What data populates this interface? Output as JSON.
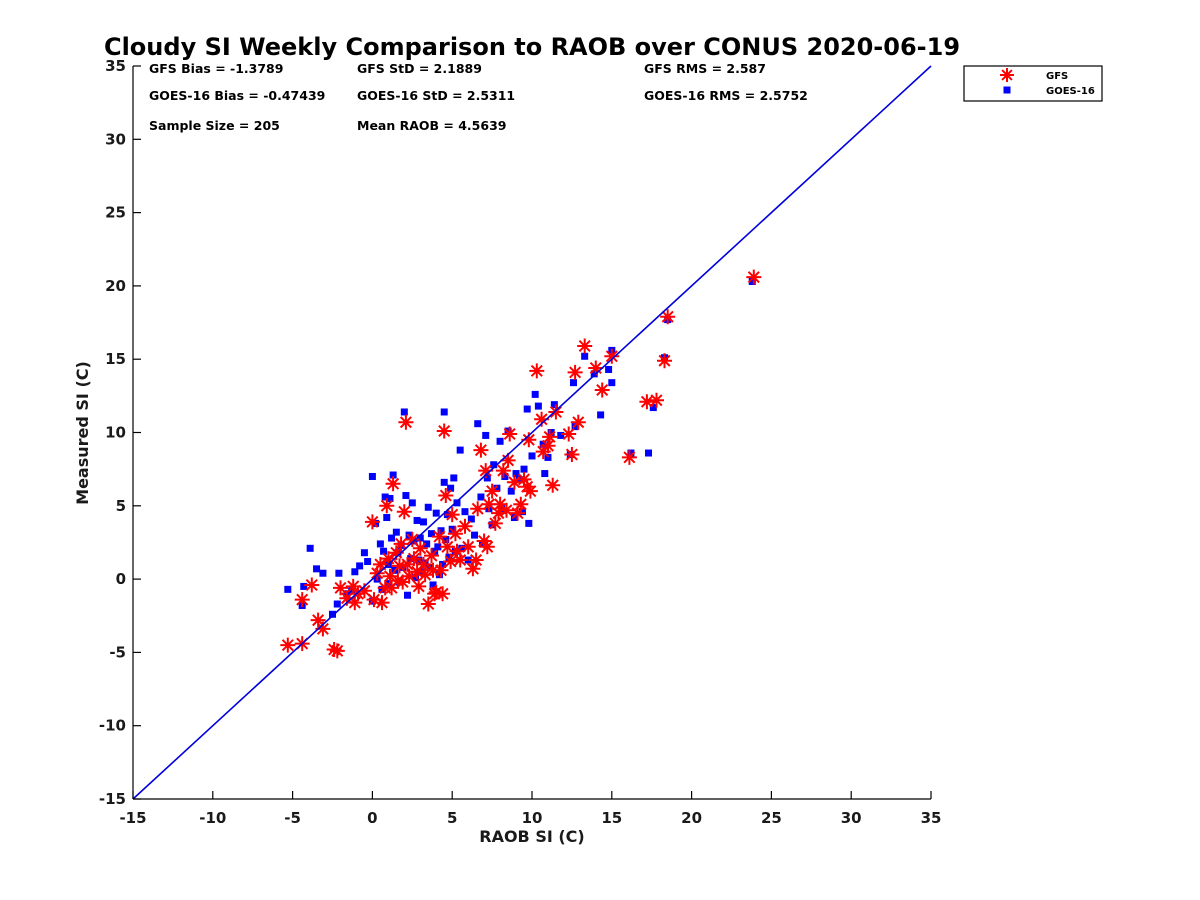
{
  "chart_data": {
    "type": "scatter",
    "title": "Cloudy SI Weekly Comparison to RAOB over CONUS 2020-06-19",
    "xlabel": "RAOB SI (C)",
    "ylabel": "Measured SI (C)",
    "xlim": [
      -15,
      35
    ],
    "ylim": [
      -15,
      35
    ],
    "xticks": [
      -15,
      -10,
      -5,
      0,
      5,
      10,
      15,
      20,
      25,
      30,
      35
    ],
    "yticks": [
      -15,
      -10,
      -5,
      0,
      5,
      10,
      15,
      20,
      25,
      30,
      35
    ],
    "grid": false,
    "legend_position": "top-right, outside plot",
    "reference_line": {
      "x": [
        -15,
        35
      ],
      "y": [
        -15,
        35
      ],
      "color": "#0000dd"
    },
    "stats": [
      [
        "GFS Bias = -1.3789",
        "GFS StD = 2.1889",
        "GFS RMS = 2.587"
      ],
      [
        "GOES-16 Bias = -0.47439",
        "GOES-16 StD = 2.5311",
        "GOES-16 RMS = 2.5752"
      ],
      [
        "Sample Size = 205",
        "Mean RAOB = 4.5639",
        ""
      ]
    ],
    "series": [
      {
        "name": "GFS",
        "marker": "asterisk",
        "color": "#ff0000",
        "points": [
          [
            -5.3,
            -4.5
          ],
          [
            -4.4,
            -4.4
          ],
          [
            -4.4,
            -1.4
          ],
          [
            -3.8,
            -0.4
          ],
          [
            -3.4,
            -2.8
          ],
          [
            -3.1,
            -3.4
          ],
          [
            -2.4,
            -4.8
          ],
          [
            -2.2,
            -4.9
          ],
          [
            -2.0,
            -0.6
          ],
          [
            -1.6,
            -1.3
          ],
          [
            -1.2,
            -0.5
          ],
          [
            -1.1,
            -1.6
          ],
          [
            -0.9,
            -1.0
          ],
          [
            -0.5,
            -0.8
          ],
          [
            0.0,
            3.9
          ],
          [
            0.1,
            -1.4
          ],
          [
            0.3,
            0.4
          ],
          [
            0.5,
            1.0
          ],
          [
            0.6,
            -1.6
          ],
          [
            0.8,
            -0.6
          ],
          [
            0.9,
            5.0
          ],
          [
            1.0,
            1.4
          ],
          [
            1.1,
            0.2
          ],
          [
            1.2,
            -0.6
          ],
          [
            1.3,
            6.5
          ],
          [
            1.5,
            1.8
          ],
          [
            1.6,
            -0.1
          ],
          [
            1.7,
            0.9
          ],
          [
            1.8,
            2.4
          ],
          [
            1.9,
            -0.2
          ],
          [
            2.0,
            4.6
          ],
          [
            2.1,
            10.7
          ],
          [
            2.2,
            1.0
          ],
          [
            2.3,
            0.2
          ],
          [
            2.5,
            2.7
          ],
          [
            2.6,
            1.4
          ],
          [
            2.8,
            0.5
          ],
          [
            2.9,
            -0.5
          ],
          [
            3.0,
            2.1
          ],
          [
            3.2,
            1.0
          ],
          [
            3.3,
            0.3
          ],
          [
            3.5,
            -1.7
          ],
          [
            3.7,
            1.6
          ],
          [
            3.8,
            0.6
          ],
          [
            3.9,
            -1.0
          ],
          [
            4.0,
            -0.9
          ],
          [
            4.2,
            2.9
          ],
          [
            4.3,
            0.6
          ],
          [
            4.4,
            -1.0
          ],
          [
            4.5,
            10.1
          ],
          [
            4.6,
            5.7
          ],
          [
            4.7,
            2.2
          ],
          [
            4.9,
            1.2
          ],
          [
            5.0,
            4.4
          ],
          [
            5.2,
            3.1
          ],
          [
            5.3,
            1.9
          ],
          [
            5.5,
            1.3
          ],
          [
            5.8,
            3.6
          ],
          [
            6.0,
            2.2
          ],
          [
            6.3,
            0.7
          ],
          [
            6.5,
            1.3
          ],
          [
            6.6,
            4.8
          ],
          [
            6.8,
            8.8
          ],
          [
            7.0,
            2.6
          ],
          [
            7.1,
            7.4
          ],
          [
            7.2,
            2.2
          ],
          [
            7.3,
            5.1
          ],
          [
            7.5,
            6.0
          ],
          [
            7.7,
            3.8
          ],
          [
            7.9,
            4.5
          ],
          [
            8.0,
            5.1
          ],
          [
            8.2,
            7.4
          ],
          [
            8.4,
            4.7
          ],
          [
            8.5,
            8.1
          ],
          [
            8.6,
            9.9
          ],
          [
            8.9,
            6.6
          ],
          [
            9.1,
            4.5
          ],
          [
            9.3,
            5.1
          ],
          [
            9.5,
            6.8
          ],
          [
            9.7,
            6.3
          ],
          [
            9.8,
            9.5
          ],
          [
            9.9,
            6.0
          ],
          [
            10.3,
            14.2
          ],
          [
            10.6,
            10.9
          ],
          [
            10.7,
            8.7
          ],
          [
            11.0,
            9.1
          ],
          [
            11.1,
            9.7
          ],
          [
            11.3,
            6.4
          ],
          [
            11.5,
            11.4
          ],
          [
            12.3,
            9.9
          ],
          [
            12.5,
            8.5
          ],
          [
            12.7,
            14.1
          ],
          [
            12.9,
            10.7
          ],
          [
            13.3,
            15.9
          ],
          [
            14.0,
            14.4
          ],
          [
            14.4,
            12.9
          ],
          [
            15.0,
            15.2
          ],
          [
            16.1,
            8.3
          ],
          [
            17.2,
            12.1
          ],
          [
            17.8,
            12.2
          ],
          [
            18.3,
            14.9
          ],
          [
            18.5,
            17.9
          ],
          [
            23.9,
            20.6
          ]
        ]
      },
      {
        "name": "GOES-16",
        "marker": "square",
        "color": "#0000ff",
        "points": [
          [
            -5.3,
            -0.7
          ],
          [
            -4.4,
            -1.8
          ],
          [
            -4.3,
            -0.5
          ],
          [
            -3.9,
            2.1
          ],
          [
            -3.5,
            0.7
          ],
          [
            -3.1,
            0.4
          ],
          [
            -2.5,
            -2.4
          ],
          [
            -2.2,
            -1.7
          ],
          [
            -2.1,
            0.4
          ],
          [
            -1.6,
            -1.0
          ],
          [
            -1.3,
            -0.8
          ],
          [
            -1.1,
            0.5
          ],
          [
            -0.8,
            0.9
          ],
          [
            -0.5,
            1.8
          ],
          [
            -0.3,
            1.2
          ],
          [
            0.0,
            -1.5
          ],
          [
            0.0,
            7.0
          ],
          [
            0.2,
            3.8
          ],
          [
            0.3,
            0.0
          ],
          [
            0.5,
            2.4
          ],
          [
            0.6,
            -0.7
          ],
          [
            0.7,
            1.9
          ],
          [
            0.8,
            5.6
          ],
          [
            0.9,
            4.2
          ],
          [
            1.0,
            1.0
          ],
          [
            1.0,
            -0.3
          ],
          [
            1.1,
            5.5
          ],
          [
            1.2,
            2.8
          ],
          [
            1.3,
            7.1
          ],
          [
            1.4,
            0.6
          ],
          [
            1.5,
            3.2
          ],
          [
            1.6,
            1.8
          ],
          [
            1.7,
            -0.2
          ],
          [
            1.8,
            2.3
          ],
          [
            1.9,
            0.8
          ],
          [
            2.0,
            11.4
          ],
          [
            2.1,
            5.7
          ],
          [
            2.2,
            -1.1
          ],
          [
            2.3,
            3.0
          ],
          [
            2.4,
            1.4
          ],
          [
            2.5,
            5.2
          ],
          [
            2.6,
            2.6
          ],
          [
            2.7,
            0.1
          ],
          [
            2.8,
            4.0
          ],
          [
            2.9,
            1.3
          ],
          [
            3.0,
            2.8
          ],
          [
            3.1,
            0.5
          ],
          [
            3.2,
            3.9
          ],
          [
            3.3,
            1.1
          ],
          [
            3.4,
            2.4
          ],
          [
            3.5,
            4.9
          ],
          [
            3.6,
            0.8
          ],
          [
            3.7,
            3.1
          ],
          [
            3.8,
            -0.4
          ],
          [
            3.9,
            1.9
          ],
          [
            4.0,
            4.5
          ],
          [
            4.1,
            2.2
          ],
          [
            4.2,
            0.3
          ],
          [
            4.3,
            3.3
          ],
          [
            4.4,
            1.0
          ],
          [
            4.5,
            11.4
          ],
          [
            4.5,
            6.6
          ],
          [
            4.6,
            2.7
          ],
          [
            4.7,
            4.4
          ],
          [
            4.8,
            1.5
          ],
          [
            4.9,
            6.2
          ],
          [
            5.0,
            3.4
          ],
          [
            5.1,
            6.9
          ],
          [
            5.2,
            1.9
          ],
          [
            5.3,
            5.2
          ],
          [
            5.5,
            8.8
          ],
          [
            5.6,
            2.1
          ],
          [
            5.8,
            4.6
          ],
          [
            6.0,
            1.3
          ],
          [
            6.2,
            4.1
          ],
          [
            6.4,
            3.0
          ],
          [
            6.6,
            10.6
          ],
          [
            6.8,
            5.6
          ],
          [
            6.9,
            2.4
          ],
          [
            7.1,
            9.8
          ],
          [
            7.2,
            6.9
          ],
          [
            7.3,
            4.8
          ],
          [
            7.5,
            3.7
          ],
          [
            7.6,
            7.8
          ],
          [
            7.8,
            6.2
          ],
          [
            8.0,
            9.4
          ],
          [
            8.1,
            4.8
          ],
          [
            8.3,
            7.0
          ],
          [
            8.5,
            10.1
          ],
          [
            8.7,
            6.0
          ],
          [
            8.9,
            4.2
          ],
          [
            9.0,
            7.2
          ],
          [
            9.2,
            6.8
          ],
          [
            9.4,
            4.6
          ],
          [
            9.5,
            7.5
          ],
          [
            9.7,
            11.6
          ],
          [
            9.8,
            3.8
          ],
          [
            10.0,
            8.4
          ],
          [
            10.2,
            12.6
          ],
          [
            10.4,
            11.8
          ],
          [
            10.7,
            9.2
          ],
          [
            10.8,
            7.2
          ],
          [
            11.0,
            8.3
          ],
          [
            11.2,
            10.0
          ],
          [
            11.4,
            11.9
          ],
          [
            11.8,
            9.8
          ],
          [
            12.4,
            8.5
          ],
          [
            12.6,
            13.4
          ],
          [
            12.7,
            10.4
          ],
          [
            13.3,
            15.2
          ],
          [
            13.9,
            14.0
          ],
          [
            14.3,
            11.2
          ],
          [
            14.8,
            14.3
          ],
          [
            15.0,
            13.4
          ],
          [
            15.0,
            15.6
          ],
          [
            16.2,
            8.6
          ],
          [
            17.3,
            8.6
          ],
          [
            17.6,
            11.7
          ],
          [
            18.3,
            15.1
          ],
          [
            18.5,
            17.7
          ],
          [
            23.8,
            20.3
          ]
        ]
      }
    ]
  }
}
